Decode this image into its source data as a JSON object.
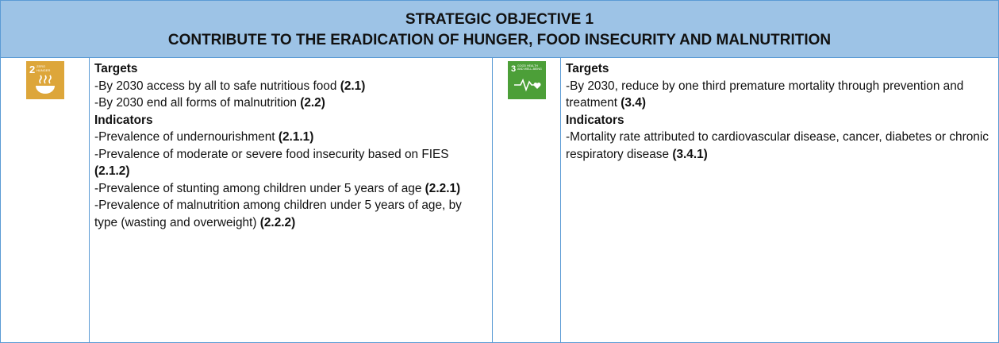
{
  "header": {
    "line1": "STRATEGIC OBJECTIVE 1",
    "line2": "CONTRIBUTE TO THE ERADICATION OF HUNGER, FOOD INSECURITY AND MALNUTRITION"
  },
  "columns": [
    {
      "icon": {
        "number": "2",
        "label_lines": [
          "ZERO",
          "HUNGER"
        ]
      },
      "targets_heading": "Targets",
      "targets": [
        {
          "text": "-By 2030 access by all to safe nutritious food",
          "code": "(2.1)"
        },
        {
          "text": "-By 2030 end all forms of malnutrition",
          "code": "(2.2)"
        }
      ],
      "indicators_heading": "Indicators",
      "indicators": [
        {
          "text": "-Prevalence of undernourishment",
          "code": "(2.1.1)"
        },
        {
          "text": "-Prevalence of moderate or severe food insecurity based on FIES",
          "code": "(2.1.2)"
        },
        {
          "text": "-Prevalence of stunting among children under 5 years of age",
          "code": "(2.2.1)"
        },
        {
          "text": "-Prevalence of malnutrition among children under 5 years of age, by type (wasting and overweight)",
          "code": "(2.2.2)"
        }
      ]
    },
    {
      "icon": {
        "number": "3",
        "label_lines": [
          "GOOD HEALTH",
          "AND WELL-BEING"
        ]
      },
      "targets_heading": "Targets",
      "targets": [
        {
          "text": "-By 2030, reduce by one third premature mortality through prevention and treatment",
          "code": "(3.4)"
        }
      ],
      "indicators_heading": "Indicators",
      "indicators": [
        {
          "text": "-Mortality rate attributed to cardiovascular disease, cancer, diabetes or chronic respiratory disease",
          "code": "(3.4.1)"
        }
      ]
    }
  ]
}
